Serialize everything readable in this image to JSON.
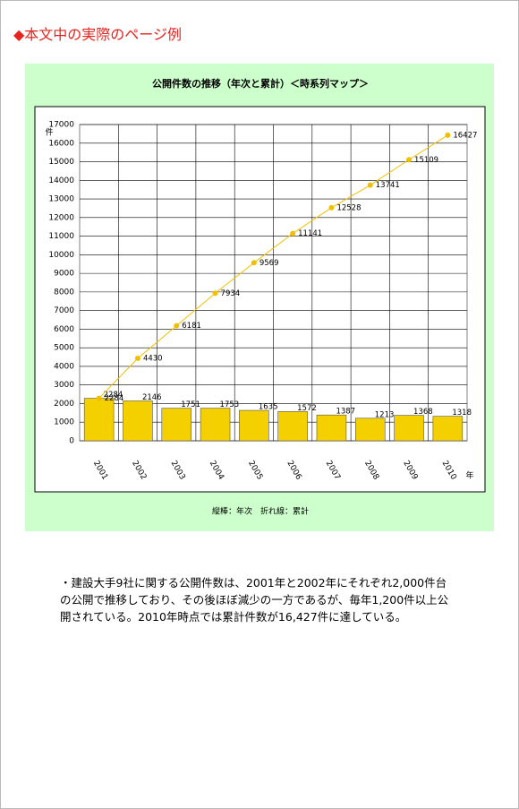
{
  "header": {
    "title": "◆本文中の実際のページ例"
  },
  "chart_data": {
    "type": "bar",
    "title": "公開件数の推移（年次と累計）＜時系列マップ＞",
    "categories": [
      "2001",
      "2002",
      "2003",
      "2004",
      "2005",
      "2006",
      "2007",
      "2008",
      "2009",
      "2010"
    ],
    "series": [
      {
        "type": "bar",
        "color": "#f5d000",
        "values": [
          2284,
          2146,
          1751,
          1753,
          1635,
          1572,
          1387,
          1213,
          1368,
          1318
        ]
      },
      {
        "type": "line",
        "color": "#f0c000",
        "values": [
          2284,
          4430,
          6181,
          7934,
          9569,
          11141,
          12528,
          13741,
          15109,
          16427
        ]
      }
    ],
    "ylim": [
      0,
      17000
    ],
    "yticks": [
      0,
      1000,
      2000,
      3000,
      4000,
      5000,
      6000,
      7000,
      8000,
      9000,
      10000,
      11000,
      12000,
      13000,
      14000,
      15000,
      16000,
      17000
    ],
    "ylabel": "件",
    "xlabel": "年",
    "grid": true,
    "caption": "縦棒：年次　折れ線：累計"
  },
  "body": {
    "text": "・建設大手9社に関する公開件数は、2001年と2002年にそれぞれ2,000件台の公開で推移しており、その後ほぼ減少の一方であるが、毎年1,200件以上公開されている。2010年時点では累計件数が16,427件に達している。"
  }
}
